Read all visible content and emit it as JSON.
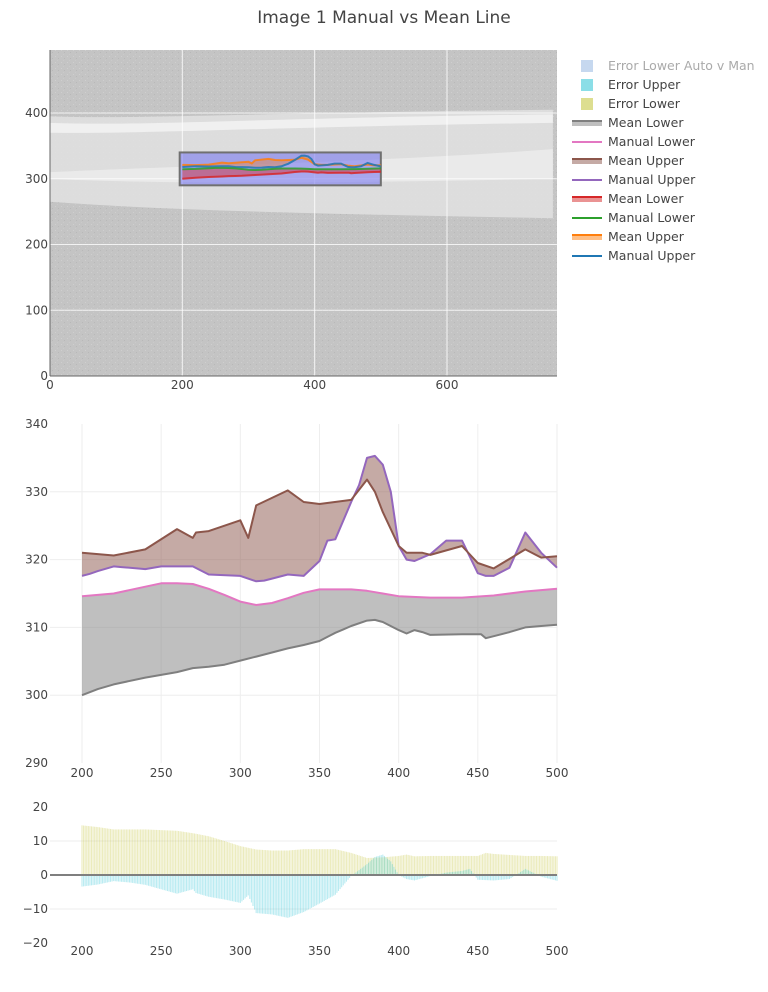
{
  "title": "Image 1 Manual vs Mean Line",
  "legend": [
    {
      "label": "Error Lower Auto v Man",
      "kind": "box",
      "color": "#aec7e8",
      "hidden": true
    },
    {
      "label": "Error Upper",
      "kind": "box",
      "color": "#17becf"
    },
    {
      "label": "Error Lower",
      "kind": "box",
      "color": "#bcbd22"
    },
    {
      "label": "Mean Lower",
      "kind": "band",
      "color": "#7f7f7f"
    },
    {
      "label": "Manual Lower",
      "kind": "line",
      "color": "#e377c2"
    },
    {
      "label": "Mean Upper",
      "kind": "band",
      "color": "#8c564b"
    },
    {
      "label": "Manual Upper",
      "kind": "line",
      "color": "#9467bd"
    },
    {
      "label": "Mean Lower",
      "kind": "band",
      "color": "#d62728"
    },
    {
      "label": "Manual Lower",
      "kind": "line",
      "color": "#2ca02c"
    },
    {
      "label": "Mean Upper",
      "kind": "band",
      "color": "#ff7f0e"
    },
    {
      "label": "Manual Upper",
      "kind": "line",
      "color": "#1f77b4"
    }
  ],
  "chart_data": [
    {
      "type": "line",
      "title": "Image overlay",
      "background": "OCT retinal scan image (grayscale)",
      "xlim": [
        0,
        760
      ],
      "ylim": [
        0,
        495
      ],
      "xticks": [
        "0",
        "200",
        "400",
        "600"
      ],
      "yticks": [
        "0",
        "100",
        "200",
        "300",
        "400"
      ],
      "highlight_box": {
        "x": [
          196,
          500
        ],
        "y": [
          290,
          340
        ],
        "color": "#6f6ff0"
      },
      "series": [
        {
          "name": "Mean Upper",
          "color": "#ff7f0e",
          "x": [
            200,
            220,
            240,
            260,
            270,
            280,
            300,
            305,
            310,
            330,
            340,
            350,
            370,
            380,
            390,
            400,
            410,
            420,
            440,
            450,
            460,
            480,
            490,
            500
          ],
          "y": [
            321,
            320.8,
            321.5,
            324.5,
            323.5,
            324.2,
            325.8,
            323.4,
            328,
            330.2,
            328.5,
            328.2,
            328.8,
            331.8,
            329,
            322,
            321,
            321,
            322,
            320,
            319,
            321.5,
            320.3,
            320.5
          ]
        },
        {
          "name": "Manual Upper",
          "color": "#1f77b4",
          "x": [
            200,
            220,
            240,
            260,
            270,
            280,
            300,
            310,
            320,
            330,
            340,
            350,
            355,
            360,
            370,
            380,
            385,
            390,
            395,
            400,
            405,
            410,
            420,
            430,
            440,
            450,
            455,
            460,
            470,
            480,
            490,
            500
          ],
          "y": [
            317.8,
            319,
            318.7,
            319,
            319,
            317.8,
            317.6,
            316.8,
            317,
            317.8,
            317.5,
            319,
            321,
            322.8,
            328.5,
            335,
            335.2,
            334,
            330,
            322,
            320,
            320.3,
            321,
            323,
            323,
            318,
            317.6,
            317.6,
            319,
            324,
            321,
            318.8
          ]
        },
        {
          "name": "Manual Lower",
          "color": "#2ca02c",
          "x": [
            200,
            220,
            240,
            250,
            260,
            270,
            280,
            290,
            300,
            310,
            320,
            330,
            340,
            350,
            360,
            370,
            380,
            390,
            400,
            420,
            440,
            460,
            480,
            500
          ],
          "y": [
            314.6,
            315,
            316,
            316.5,
            316.5,
            316.4,
            315.7,
            314.8,
            313.8,
            313.3,
            313.6,
            314.3,
            315.1,
            315.6,
            315.6,
            315.6,
            315.4,
            315,
            314.6,
            314.4,
            314.4,
            314.7,
            315.3,
            315.7
          ]
        },
        {
          "name": "Mean Lower",
          "color": "#d62728",
          "x": [
            200,
            210,
            220,
            240,
            260,
            270,
            280,
            290,
            300,
            310,
            320,
            330,
            340,
            350,
            355,
            360,
            365,
            370,
            380,
            385,
            390,
            400,
            405,
            410,
            415,
            420,
            440,
            450,
            452,
            455,
            460,
            470,
            480,
            490,
            500
          ],
          "y": [
            300,
            300.9,
            301.6,
            302.6,
            303.4,
            304,
            304.2,
            304.5,
            305.1,
            305.7,
            306.3,
            306.9,
            307.4,
            308,
            308.6,
            309.2,
            309.7,
            310.2,
            311,
            311.1,
            310.8,
            309.6,
            309.1,
            309.6,
            309.3,
            308.9,
            309,
            309,
            309,
            308.4,
            308.7,
            309.3,
            310,
            310.2,
            310.4
          ]
        }
      ]
    },
    {
      "type": "area",
      "title": "Manual vs Mean (zoom)",
      "xlim": [
        190,
        500
      ],
      "ylim": [
        290,
        340
      ],
      "xticks": [
        "200",
        "250",
        "300",
        "350",
        "400",
        "450",
        "500"
      ],
      "yticks": [
        "290",
        "300",
        "310",
        "320",
        "330",
        "340"
      ],
      "grid": true,
      "series": [
        {
          "name": "Mean Upper",
          "color": "#8c564b",
          "fill_to": "Manual Upper",
          "x": [
            200,
            220,
            240,
            260,
            270,
            272,
            280,
            300,
            305,
            310,
            330,
            340,
            350,
            370,
            380,
            385,
            390,
            400,
            405,
            410,
            415,
            420,
            440,
            450,
            460,
            480,
            490,
            500
          ],
          "y": [
            321,
            320.6,
            321.5,
            324.5,
            323.2,
            324,
            324.2,
            325.8,
            323.2,
            328,
            330.2,
            328.5,
            328.2,
            328.8,
            331.8,
            330,
            327,
            322,
            321,
            321,
            321,
            320.7,
            322,
            319.5,
            318.7,
            321.5,
            320.3,
            320.5
          ]
        },
        {
          "name": "Manual Upper",
          "color": "#9467bd",
          "x": [
            200,
            205,
            210,
            220,
            225,
            240,
            250,
            260,
            270,
            280,
            300,
            310,
            315,
            320,
            330,
            340,
            350,
            355,
            360,
            370,
            375,
            380,
            385,
            390,
            395,
            400,
            405,
            410,
            420,
            430,
            440,
            450,
            455,
            460,
            470,
            480,
            490,
            500
          ],
          "y": [
            317.6,
            317.9,
            318.3,
            319,
            318.9,
            318.6,
            319,
            319,
            319,
            317.8,
            317.6,
            316.8,
            316.9,
            317.2,
            317.8,
            317.6,
            319.8,
            322.8,
            323,
            328.5,
            331,
            335,
            335.3,
            334,
            330,
            322,
            320,
            319.8,
            320.8,
            322.8,
            322.8,
            318,
            317.6,
            317.6,
            318.8,
            324,
            321,
            318.8
          ]
        },
        {
          "name": "Manual Lower",
          "color": "#e377c2",
          "x": [
            200,
            220,
            240,
            250,
            260,
            270,
            280,
            290,
            300,
            310,
            320,
            330,
            340,
            350,
            360,
            370,
            380,
            390,
            400,
            420,
            440,
            460,
            480,
            500
          ],
          "y": [
            314.6,
            315,
            316,
            316.5,
            316.5,
            316.4,
            315.7,
            314.8,
            313.8,
            313.3,
            313.6,
            314.3,
            315.1,
            315.6,
            315.6,
            315.6,
            315.4,
            315,
            314.6,
            314.4,
            314.4,
            314.7,
            315.3,
            315.7
          ]
        },
        {
          "name": "Mean Lower",
          "color": "#7f7f7f",
          "fill_to": "Manual Lower",
          "x": [
            200,
            210,
            220,
            240,
            260,
            270,
            280,
            290,
            300,
            310,
            320,
            330,
            340,
            350,
            355,
            360,
            365,
            370,
            380,
            385,
            390,
            400,
            405,
            410,
            415,
            420,
            440,
            450,
            452,
            455,
            460,
            470,
            480,
            490,
            500
          ],
          "y": [
            300,
            300.9,
            301.6,
            302.6,
            303.4,
            304,
            304.2,
            304.5,
            305.1,
            305.7,
            306.3,
            306.9,
            307.4,
            308,
            308.6,
            309.2,
            309.7,
            310.2,
            311,
            311.1,
            310.8,
            309.6,
            309.1,
            309.6,
            309.3,
            308.9,
            309,
            309,
            309,
            308.4,
            308.7,
            309.3,
            310,
            310.2,
            310.4
          ]
        }
      ]
    },
    {
      "type": "bar",
      "title": "Error",
      "xlim": [
        190,
        500
      ],
      "ylim": [
        -20,
        20
      ],
      "xticks": [
        "200",
        "250",
        "300",
        "350",
        "400",
        "450",
        "500"
      ],
      "yticks": [
        "−20",
        "−10",
        "0",
        "10",
        "20"
      ],
      "grid": true,
      "series": [
        {
          "name": "Error Lower",
          "color": "#bcbd22",
          "x": [
            200,
            210,
            220,
            240,
            250,
            260,
            270,
            280,
            290,
            300,
            310,
            320,
            330,
            340,
            350,
            360,
            370,
            380,
            390,
            400,
            405,
            410,
            420,
            440,
            450,
            455,
            460,
            480,
            490,
            500
          ],
          "y": [
            14.6,
            14.1,
            13.4,
            13.4,
            13.2,
            13,
            12.3,
            11.4,
            10,
            8.5,
            7.5,
            7.2,
            7.2,
            7.6,
            7.6,
            7.6,
            6.5,
            5,
            5.2,
            5.6,
            6,
            5.5,
            5.6,
            5.6,
            5.6,
            6.5,
            6.2,
            5.6,
            5.6,
            5.5
          ]
        },
        {
          "name": "Error Upper",
          "color": "#17becf",
          "x": [
            200,
            210,
            220,
            230,
            240,
            250,
            260,
            270,
            272,
            280,
            290,
            300,
            305,
            310,
            320,
            330,
            340,
            350,
            360,
            370,
            380,
            385,
            390,
            395,
            400,
            405,
            410,
            420,
            430,
            440,
            445,
            450,
            460,
            470,
            480,
            490,
            500
          ],
          "y": [
            -3.4,
            -2.8,
            -1.8,
            -2.2,
            -2.9,
            -4.2,
            -5.5,
            -4.2,
            -5.3,
            -6.4,
            -7.2,
            -8.2,
            -6,
            -11.2,
            -11.6,
            -12.6,
            -10.9,
            -8.4,
            -5.8,
            -0.3,
            3.2,
            5.3,
            6,
            4,
            0,
            -1.2,
            -1.6,
            -0.3,
            0.7,
            1.2,
            1.8,
            -1.4,
            -1.6,
            -1.2,
            1.8,
            -0.5,
            -1.7
          ]
        }
      ]
    }
  ]
}
